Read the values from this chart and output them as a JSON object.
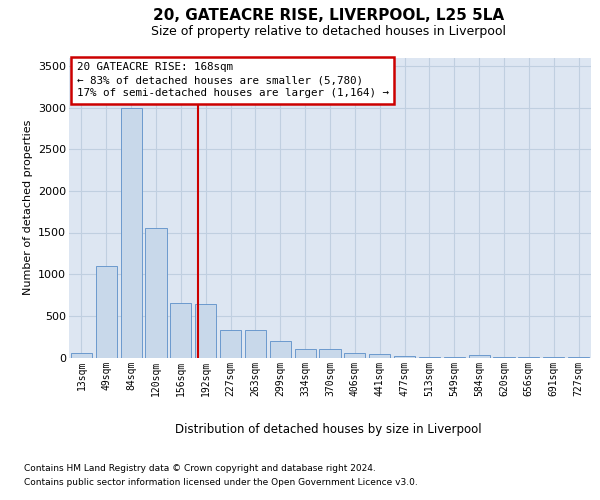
{
  "title1": "20, GATEACRE RISE, LIVERPOOL, L25 5LA",
  "title2": "Size of property relative to detached houses in Liverpool",
  "xlabel": "Distribution of detached houses by size in Liverpool",
  "ylabel": "Number of detached properties",
  "footnote1": "Contains HM Land Registry data © Crown copyright and database right 2024.",
  "footnote2": "Contains public sector information licensed under the Open Government Licence v3.0.",
  "annotation_title": "20 GATEACRE RISE: 168sqm",
  "annotation_line1": "← 83% of detached houses are smaller (5,780)",
  "annotation_line2": "17% of semi-detached houses are larger (1,164) →",
  "bar_color": "#c8d8ea",
  "bar_edge_color": "#5b8fc9",
  "vline_color": "#cc0000",
  "vline_x_index": 4.68,
  "grid_color": "#c0cfe0",
  "background_color": "#dde6f2",
  "categories": [
    "13sqm",
    "49sqm",
    "84sqm",
    "120sqm",
    "156sqm",
    "192sqm",
    "227sqm",
    "263sqm",
    "299sqm",
    "334sqm",
    "370sqm",
    "406sqm",
    "441sqm",
    "477sqm",
    "513sqm",
    "549sqm",
    "584sqm",
    "620sqm",
    "656sqm",
    "691sqm",
    "727sqm"
  ],
  "values": [
    50,
    1100,
    3000,
    1550,
    650,
    640,
    325,
    325,
    195,
    108,
    98,
    52,
    38,
    23,
    8,
    8,
    27,
    3,
    3,
    3,
    3
  ],
  "ylim": [
    0,
    3600
  ],
  "yticks": [
    0,
    500,
    1000,
    1500,
    2000,
    2500,
    3000,
    3500
  ]
}
